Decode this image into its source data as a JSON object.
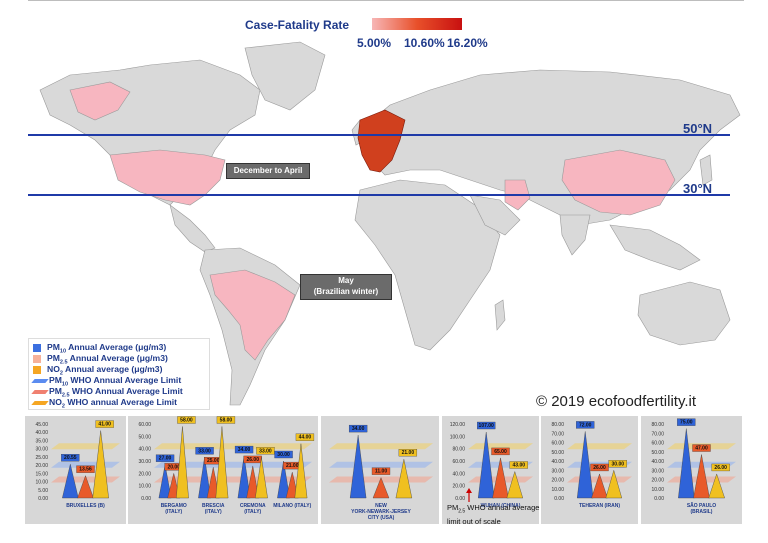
{
  "scale": {
    "title": "Case-Fatality Rate",
    "ticks": [
      "5.00%",
      "10.60%",
      "16.20%"
    ]
  },
  "latitudes": {
    "north": "50°N",
    "south": "30°N"
  },
  "seasons": {
    "north": "December to April",
    "south_line1": "May",
    "south_line2": "(Brazilian winter)"
  },
  "legend": [
    {
      "pre": "PM",
      "sub": "10",
      "post": " Annual Average (μg/m3)",
      "kind": "square",
      "color": "#3b6fe0"
    },
    {
      "pre": "PM",
      "sub": "2.5",
      "post": " Annual Average (μg/m3)",
      "kind": "square",
      "color": "#f6b19a"
    },
    {
      "pre": "NO",
      "sub": "2",
      "post": " Annual average (μg/m3)",
      "kind": "square",
      "color": "#f5a623"
    },
    {
      "pre": "PM",
      "sub": "10",
      "post": " WHO Annual Average Limit",
      "kind": "line",
      "color": "#5b8cf0"
    },
    {
      "pre": "PM",
      "sub": "2.5",
      "post": " WHO Annual Average Limit",
      "kind": "line",
      "color": "#f08070"
    },
    {
      "pre": "NO",
      "sub": "2",
      "post": " WHO annual Average Limit",
      "kind": "line",
      "color": "#f5a623"
    }
  ],
  "copyright": "© 2019 ecofoodfertility.it",
  "wuhan_note": {
    "pre": "PM",
    "sub": "2.5",
    "post": " WHO annual average limit out of scale"
  },
  "colors": {
    "pm10": "#2f63d8",
    "pm25": "#e85a2a",
    "no2": "#f0c020",
    "map_land": "#d9d9d9",
    "map_low": "#f7b6c0",
    "map_high": "#d0401e"
  },
  "chart_data": [
    {
      "type": "bar",
      "title": "",
      "xlabel": "",
      "ylabel": "",
      "categories": [
        "BRUXELLES (B)"
      ],
      "ylim": [
        0,
        45
      ],
      "yticks": [
        "45.00",
        "40.00",
        "35.00",
        "30.00",
        "25.00",
        "20.00",
        "15.00",
        "10.00",
        "5.00",
        "0.00"
      ],
      "series": [
        {
          "name": "PM10",
          "values": [
            20.55
          ]
        },
        {
          "name": "PM2.5",
          "values": [
            13.56
          ]
        },
        {
          "name": "NO2",
          "values": [
            41.0
          ]
        }
      ],
      "labels": [
        [
          "20.55"
        ],
        [
          "13.56"
        ],
        [
          "41.00"
        ]
      ]
    },
    {
      "type": "bar",
      "title": "",
      "xlabel": "",
      "ylabel": "",
      "categories": [
        "BERGAMO (ITALY)",
        "BRESCIA (ITALY)",
        "CREMONA (ITALY)",
        "MILANO (ITALY)"
      ],
      "ylim": [
        0,
        60
      ],
      "yticks": [
        "60.00",
        "50.00",
        "40.00",
        "30.00",
        "20.00",
        "10.00",
        "0.00"
      ],
      "series": [
        {
          "name": "PM10",
          "values": [
            27.0,
            33.0,
            34.0,
            30.0
          ]
        },
        {
          "name": "PM2.5",
          "values": [
            20.0,
            25.0,
            26.0,
            21.0
          ]
        },
        {
          "name": "NO2",
          "values": [
            58.0,
            58.0,
            33.0,
            44.0
          ]
        }
      ],
      "labels": [
        [
          "27.00",
          "33.00",
          "34.00",
          "30.00"
        ],
        [
          "20.00",
          "25.00",
          "26.00",
          "21.00"
        ],
        [
          "58.00",
          "58.00",
          "33.00",
          "44.00"
        ]
      ]
    },
    {
      "type": "bar",
      "title": "",
      "xlabel": "",
      "ylabel": "",
      "categories": [
        "NEW YORK-NEWARK-JERSEY CITY (USA)"
      ],
      "ylim": [
        0,
        40
      ],
      "yticks": [],
      "series": [
        {
          "name": "PM10",
          "values": [
            34.0
          ]
        },
        {
          "name": "PM2.5",
          "values": [
            11.0
          ]
        },
        {
          "name": "NO2",
          "values": [
            21.0
          ]
        }
      ],
      "labels": [
        [
          "34.00"
        ],
        [
          "11.00"
        ],
        [
          "21.00"
        ]
      ]
    },
    {
      "type": "bar",
      "title": "",
      "xlabel": "",
      "ylabel": "",
      "categories": [
        "WUHAN (CHINA)"
      ],
      "ylim": [
        0,
        120
      ],
      "yticks": [
        "120.00",
        "100.00",
        "80.00",
        "60.00",
        "40.00",
        "20.00",
        "0.00"
      ],
      "series": [
        {
          "name": "PM10",
          "values": [
            107.0
          ]
        },
        {
          "name": "PM2.5",
          "values": [
            65.0
          ]
        },
        {
          "name": "NO2",
          "values": [
            43.0
          ]
        }
      ],
      "labels": [
        [
          "107.00"
        ],
        [
          "65.00"
        ],
        [
          "43.00"
        ]
      ]
    },
    {
      "type": "bar",
      "title": "",
      "xlabel": "",
      "ylabel": "",
      "categories": [
        "TEHERAN (IRAN)"
      ],
      "ylim": [
        0,
        80
      ],
      "yticks": [
        "80.00",
        "70.00",
        "60.00",
        "50.00",
        "40.00",
        "30.00",
        "20.00",
        "10.00",
        "0.00"
      ],
      "series": [
        {
          "name": "PM10",
          "values": [
            72.0
          ]
        },
        {
          "name": "PM2.5",
          "values": [
            26.0
          ]
        },
        {
          "name": "NO2",
          "values": [
            30.0
          ]
        }
      ],
      "labels": [
        [
          "72.00"
        ],
        [
          "26.00"
        ],
        [
          "30.00"
        ]
      ]
    },
    {
      "type": "bar",
      "title": "",
      "xlabel": "",
      "ylabel": "",
      "categories": [
        "SÃO PAULO (BRASIL)"
      ],
      "ylim": [
        0,
        80
      ],
      "yticks": [
        "80.00",
        "70.00",
        "60.00",
        "50.00",
        "40.00",
        "30.00",
        "20.00",
        "10.00",
        "0.00"
      ],
      "series": [
        {
          "name": "PM10",
          "values": [
            75.0
          ]
        },
        {
          "name": "PM2.5",
          "values": [
            47.0
          ]
        },
        {
          "name": "NO2",
          "values": [
            26.0
          ]
        }
      ],
      "labels": [
        [
          "75.00"
        ],
        [
          "47.00"
        ],
        [
          "26.00"
        ]
      ]
    }
  ]
}
